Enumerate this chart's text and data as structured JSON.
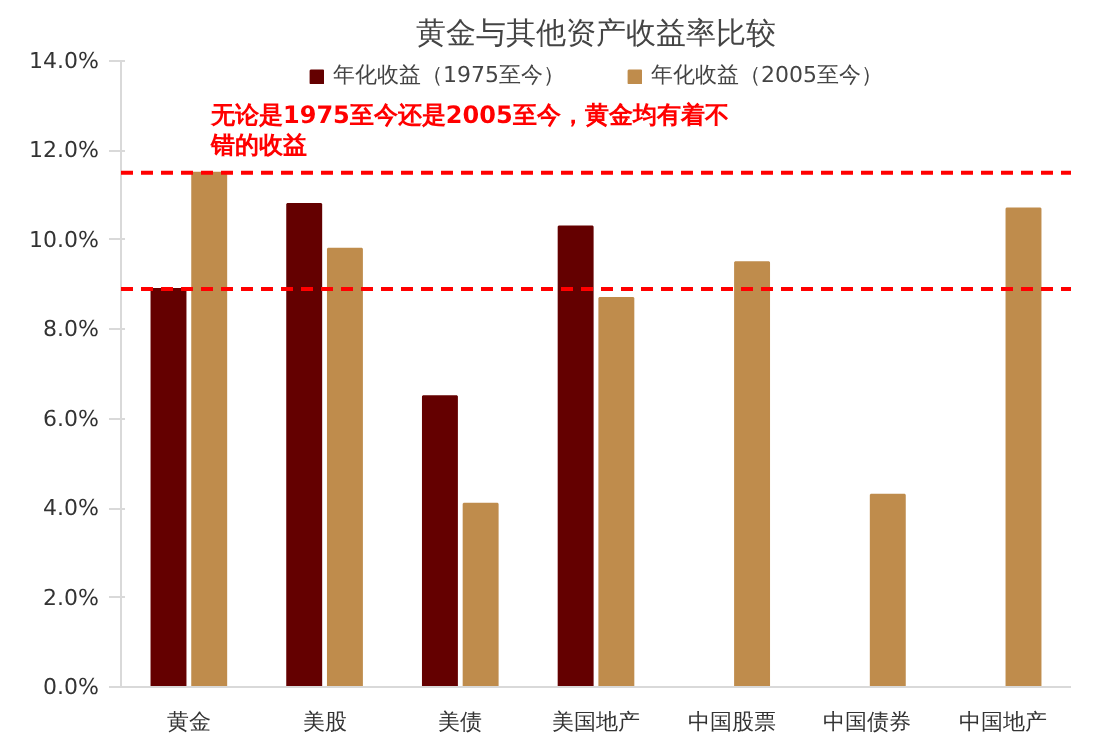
{
  "chart_data": {
    "type": "bar",
    "title": "黄金与其他资产收益率比较",
    "categories": [
      "黄金",
      "美股",
      "美债",
      "美国地产",
      "中国股票",
      "中国债券",
      "中国地产"
    ],
    "series": [
      {
        "name": "年化收益（1975至今）",
        "color": "#640000",
        "values": [
          8.9,
          10.8,
          6.5,
          10.3,
          null,
          null,
          null
        ]
      },
      {
        "name": "年化收益（2005至今）",
        "color": "#bf8c4c",
        "values": [
          11.5,
          9.8,
          4.1,
          8.7,
          9.5,
          4.3,
          10.7
        ]
      }
    ],
    "ylim": [
      0,
      14
    ],
    "yticks": [
      {
        "value": 0,
        "label": "0.0%"
      },
      {
        "value": 2,
        "label": "2.0%"
      },
      {
        "value": 4,
        "label": "4.0%"
      },
      {
        "value": 6,
        "label": "6.0%"
      },
      {
        "value": 8,
        "label": "8.0%"
      },
      {
        "value": 10,
        "label": "10.0%"
      },
      {
        "value": 12,
        "label": "12.0%"
      },
      {
        "value": 14,
        "label": "14.0%"
      }
    ],
    "ref_lines": [
      {
        "axis": "y",
        "value": 11.5,
        "label": null,
        "color": "#ff0000",
        "line_style": "dashed"
      },
      {
        "axis": "y",
        "value": 8.9,
        "label": null,
        "color": "#ff0000",
        "line_style": "dashed"
      }
    ],
    "annotations": [
      "无论是1975至今还是2005至今，黄金均有着不错的收益"
    ],
    "legend": "top",
    "grid": false
  }
}
